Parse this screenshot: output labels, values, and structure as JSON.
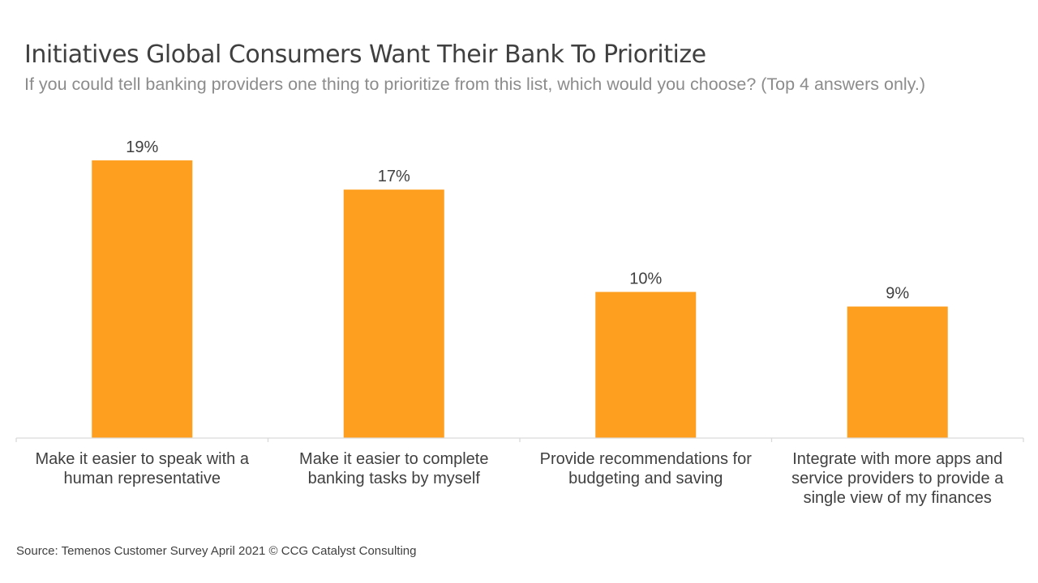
{
  "chart_data": {
    "type": "bar",
    "title": "Initiatives Global Consumers Want Their Bank To Prioritize",
    "subtitle": "If you could tell banking providers one thing to prioritize from this list, which would you choose? (Top 4 answers only.)",
    "categories": [
      [
        "Make it easier to speak with a",
        "human representative"
      ],
      [
        "Make it easier to complete",
        "banking tasks by myself"
      ],
      [
        "Provide recommendations for",
        "budgeting and saving"
      ],
      [
        "Integrate with more apps and",
        "service providers to provide a",
        "single view of my finances"
      ]
    ],
    "values": [
      19,
      17,
      10,
      9
    ],
    "value_labels": [
      "19%",
      "17%",
      "10%",
      "9%"
    ],
    "ylim": [
      0,
      20.5
    ],
    "grid": false,
    "bar_color": "#FF9F1F",
    "axis_color": "#D9D9D9"
  },
  "source": "Source: Temenos Customer Survey April 2021 © CCG Catalyst Consulting"
}
